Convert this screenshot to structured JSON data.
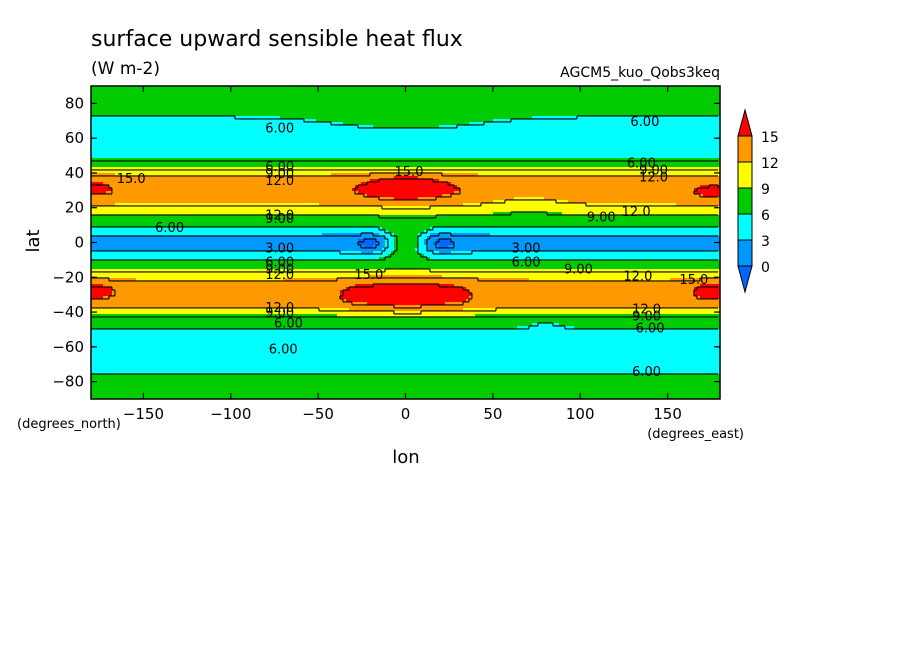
{
  "chart_data": {
    "type": "contour",
    "title": "surface upward sensible heat flux",
    "units": "(W m-2)",
    "run_label": "AGCM5_kuo_Qobs3keq",
    "xlabel": "lon",
    "ylabel": "lat",
    "x_units": "(degrees_east)",
    "y_units": "(degrees_north)",
    "xlim": [
      -180,
      180
    ],
    "ylim": [
      -90,
      90
    ],
    "x_ticks": [
      -150,
      -100,
      -50,
      0,
      50,
      100,
      150
    ],
    "y_ticks": [
      -80,
      -60,
      -40,
      -20,
      0,
      20,
      40,
      60,
      80
    ],
    "levels": [
      0,
      3,
      6,
      9,
      12,
      15
    ],
    "colorbar": {
      "labels": [
        "15",
        "12",
        "9",
        "6",
        "3",
        "0"
      ],
      "colors": [
        "#ff0000",
        "#ff9900",
        "#ffff00",
        "#00cc00",
        "#00ffff",
        "#0099ff",
        "#0066ff"
      ],
      "extend": "both"
    },
    "level_colors": {
      "below_0": "#0066ff",
      "0_3": "#0099ff",
      "3_6": "#00ffff",
      "6_9": "#00cc00",
      "9_12": "#ffff00",
      "12_15": "#ff9900",
      "above_15": "#ff0000"
    },
    "contour_labels": [
      {
        "text": "6.00",
        "lon": -72,
        "lat": 66
      },
      {
        "text": "6.00",
        "lon": 137,
        "lat": 70
      },
      {
        "text": "6.00",
        "lon": -72,
        "lat": 44
      },
      {
        "text": "9.00",
        "lon": -72,
        "lat": 40
      },
      {
        "text": "12.0",
        "lon": -72,
        "lat": 36
      },
      {
        "text": "15.0",
        "lon": -157,
        "lat": 37
      },
      {
        "text": "15.0",
        "lon": 2,
        "lat": 41
      },
      {
        "text": "6.00",
        "lon": 135,
        "lat": 46
      },
      {
        "text": "9.00",
        "lon": 142,
        "lat": 42
      },
      {
        "text": "12.0",
        "lon": 142,
        "lat": 38
      },
      {
        "text": "12.0",
        "lon": -72,
        "lat": 16
      },
      {
        "text": "9.00",
        "lon": -72,
        "lat": 14
      },
      {
        "text": "9.00",
        "lon": 112,
        "lat": 15
      },
      {
        "text": "12.0",
        "lon": 132,
        "lat": 18
      },
      {
        "text": "6.00",
        "lon": -135,
        "lat": 9
      },
      {
        "text": "3.00",
        "lon": -72,
        "lat": -3
      },
      {
        "text": "3.00",
        "lon": 69,
        "lat": -3
      },
      {
        "text": "6.00",
        "lon": -72,
        "lat": -11
      },
      {
        "text": "6.00",
        "lon": 69,
        "lat": -11
      },
      {
        "text": "9.00",
        "lon": -72,
        "lat": -15
      },
      {
        "text": "12.0",
        "lon": -72,
        "lat": -18
      },
      {
        "text": "15.0",
        "lon": -21,
        "lat": -18
      },
      {
        "text": "9.00",
        "lon": 99,
        "lat": -15
      },
      {
        "text": "12.0",
        "lon": 133,
        "lat": -19
      },
      {
        "text": "15.0",
        "lon": 165,
        "lat": -21
      },
      {
        "text": "12.0",
        "lon": -72,
        "lat": -37
      },
      {
        "text": "9.00",
        "lon": -72,
        "lat": -40
      },
      {
        "text": "6.00",
        "lon": -67,
        "lat": -46
      },
      {
        "text": "12.0",
        "lon": 138,
        "lat": -38
      },
      {
        "text": "9.00",
        "lon": 138,
        "lat": -42
      },
      {
        "text": "6.00",
        "lon": 140,
        "lat": -49
      },
      {
        "text": "6.00",
        "lon": -70,
        "lat": -61
      },
      {
        "text": "6.00",
        "lon": 138,
        "lat": -74
      }
    ],
    "fields": {
      "jet": [
        {
          "lat": 90,
          "value": 6.5
        },
        {
          "lat": 82,
          "value": 6.5
        },
        {
          "lat": 74,
          "value": 6.2
        },
        {
          "lat": 66,
          "value": 4.5
        },
        {
          "lat": 58,
          "value": 4.5
        },
        {
          "lat": 50,
          "value": 5.5
        },
        {
          "lat": 46,
          "value": 6.5
        },
        {
          "lat": 42,
          "value": 9.5
        },
        {
          "lat": 38,
          "value": 12.5
        },
        {
          "lat": 30,
          "value": 13.5
        },
        {
          "lat": 24,
          "value": 13
        },
        {
          "lat": 19,
          "value": 10.5
        },
        {
          "lat": 15,
          "value": 8.5
        },
        {
          "lat": 11,
          "value": 6.5
        },
        {
          "lat": 7,
          "value": 5
        },
        {
          "lat": 4,
          "value": 2.5
        },
        {
          "lat": 0,
          "value": 2
        },
        {
          "lat": -4,
          "value": 2.5
        },
        {
          "lat": -8,
          "value": 5
        },
        {
          "lat": -11,
          "value": 6.5
        },
        {
          "lat": -15,
          "value": 8.5
        },
        {
          "lat": -19,
          "value": 11
        },
        {
          "lat": -25,
          "value": 13.5
        },
        {
          "lat": -34,
          "value": 13.5
        },
        {
          "lat": -39,
          "value": 11
        },
        {
          "lat": -43,
          "value": 8
        },
        {
          "lat": -48,
          "value": 6.2
        },
        {
          "lat": -54,
          "value": 5
        },
        {
          "lat": -62,
          "value": 4.5
        },
        {
          "lat": -70,
          "value": 5.5
        },
        {
          "lat": -78,
          "value": 6.3
        },
        {
          "lat": -90,
          "value": 6.5
        }
      ]
    }
  }
}
